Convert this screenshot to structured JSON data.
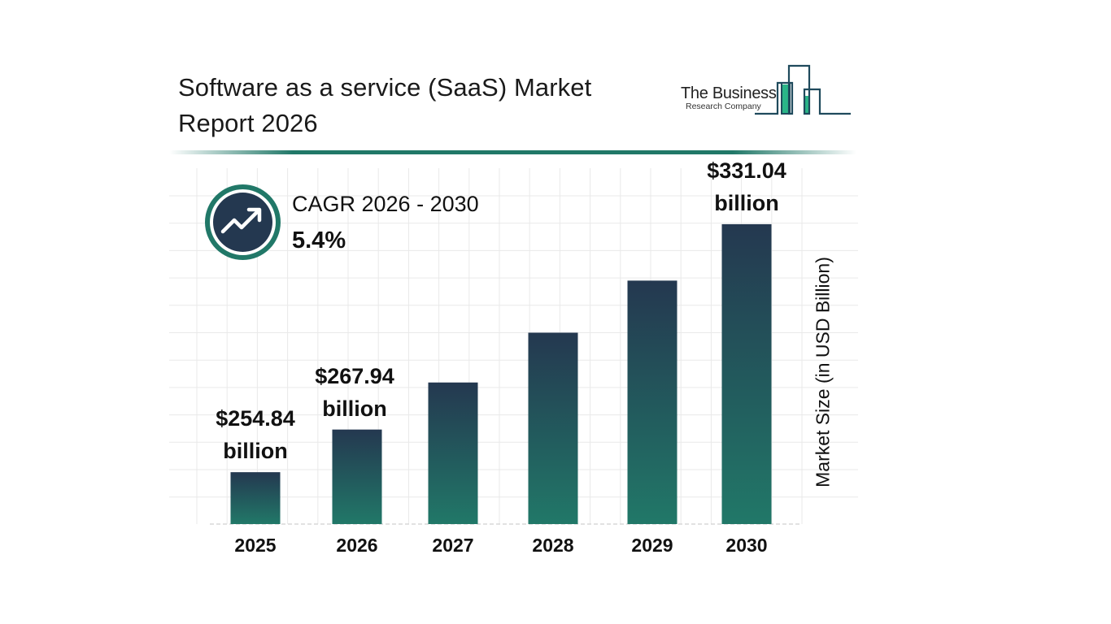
{
  "header": {
    "title_line1": "Software as a service (SaaS) Market",
    "title_line2": "Report 2026"
  },
  "logo": {
    "name_line1": "The Business",
    "name_line2": "Research Company",
    "accent_color": "#2bb588",
    "outline_color": "#1f4a5c"
  },
  "cagr": {
    "icon": "trending-up-icon",
    "label": "CAGR 2026 - 2030",
    "value": "5.4%"
  },
  "colors": {
    "bar_top": "#243850",
    "bar_bottom": "#217868",
    "accent": "#217868",
    "grid": "#e9e9e9"
  },
  "chart_data": {
    "type": "bar",
    "title": "Software as a service (SaaS) Market Report 2026",
    "xlabel": "",
    "ylabel": "Market Size (in USD Billion)",
    "categories": [
      "2025",
      "2026",
      "2027",
      "2028",
      "2029",
      "2030"
    ],
    "values": [
      254.84,
      267.94,
      282.4,
      297.7,
      313.7,
      331.04
    ],
    "data_labels": [
      {
        "index": 0,
        "line1": "$254.84",
        "line2": "billion"
      },
      {
        "index": 1,
        "line1": "$267.94",
        "line2": "billion"
      },
      {
        "index": 5,
        "line1": "$331.04",
        "line2": "billion"
      }
    ],
    "ylim": [
      238.9,
      345
    ],
    "grid": true,
    "legend": "none",
    "annotation": "CAGR 2026 - 2030: 5.4%"
  }
}
